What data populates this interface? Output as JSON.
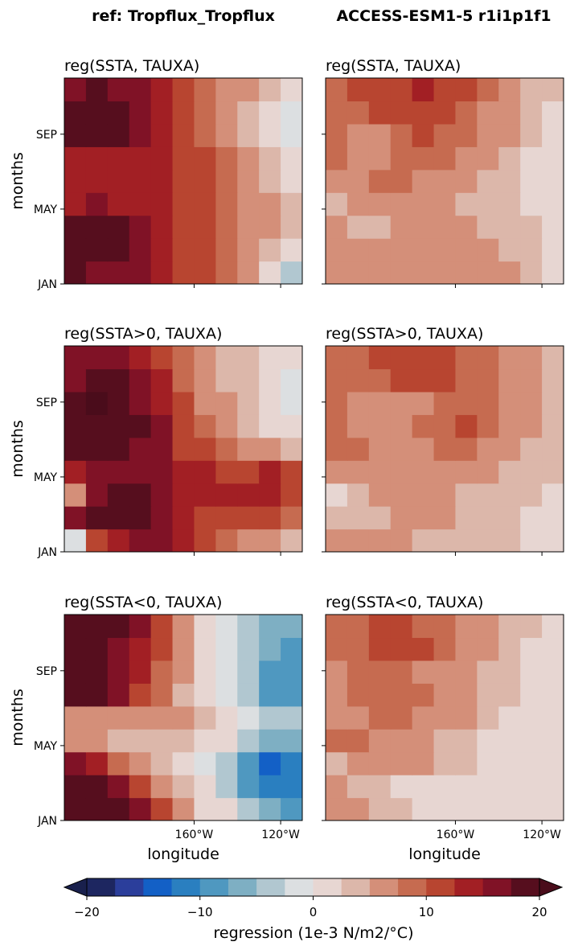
{
  "figure": {
    "column_titles": [
      "ref: Tropflux_Tropflux",
      "ACCESS-ESM1-5 r1i1p1f1"
    ],
    "colors": [
      "#1d2660",
      "#2b3e9b",
      "#1360c6",
      "#2a7fc0",
      "#4f98c0",
      "#7eafc3",
      "#b1c7d0",
      "#dcdfe1",
      "#e7d6d2",
      "#dcb7aa",
      "#d48f79",
      "#c66b50",
      "#b84530",
      "#a21f24",
      "#801226",
      "#560e1e"
    ],
    "under_color": "#19204d",
    "over_color": "#4a0c1b"
  },
  "chart_data": [
    {
      "type": "heatmap",
      "title": "reg(SSTA, TAUXA)",
      "ylabel": "months",
      "xlabel": "",
      "yticks": [
        "JAN",
        "MAY",
        "SEP"
      ],
      "xticks": [],
      "show_ytick_labels": true,
      "xlim_lon": [
        140,
        250
      ],
      "xtick_lon": [
        200,
        240
      ],
      "field": [
        [
          18,
          17,
          17,
          15,
          14,
          12,
          11,
          9,
          6,
          1,
          -3
        ],
        [
          19,
          20,
          19,
          15,
          14,
          12,
          11,
          9,
          7,
          4,
          2
        ],
        [
          18,
          19,
          18,
          15,
          14,
          12,
          11,
          9,
          7,
          5,
          3
        ],
        [
          14,
          15,
          14,
          14,
          13,
          12,
          10,
          9,
          7,
          5,
          3
        ],
        [
          13,
          13,
          13,
          13,
          13,
          12,
          10,
          9,
          6,
          4,
          2
        ],
        [
          14,
          14,
          14,
          13,
          13,
          11,
          10,
          9,
          6,
          3,
          1
        ],
        [
          18,
          20,
          19,
          16,
          14,
          11,
          9,
          7,
          4,
          1,
          -1
        ],
        [
          18,
          20,
          19,
          16,
          14,
          11,
          9,
          7,
          4,
          1,
          -2
        ],
        [
          17,
          18,
          17,
          15,
          14,
          11,
          9,
          7,
          5,
          3,
          0
        ]
      ]
    },
    {
      "type": "heatmap",
      "title": "reg(SSTA, TAUXA)",
      "ylabel": "",
      "xlabel": "",
      "yticks": [
        "JAN",
        "MAY",
        "SEP"
      ],
      "xticks": [],
      "show_ytick_labels": false,
      "xlim_lon": [
        140,
        250
      ],
      "xtick_lon": [
        200,
        240
      ],
      "field": [
        [
          6,
          6,
          7,
          7,
          7,
          6,
          7,
          6,
          5,
          3,
          2
        ],
        [
          7,
          6,
          5,
          6,
          7,
          7,
          6,
          5,
          4,
          3,
          2
        ],
        [
          5,
          4,
          4,
          5,
          6,
          6,
          5,
          4,
          3,
          3,
          2
        ],
        [
          4,
          5,
          6,
          7,
          6,
          5,
          4,
          3,
          3,
          2,
          1
        ],
        [
          6,
          7,
          8,
          8,
          7,
          6,
          5,
          4,
          3,
          2,
          1
        ],
        [
          8,
          7,
          7,
          8,
          9,
          8,
          7,
          6,
          4,
          2,
          1
        ],
        [
          8,
          6,
          7,
          9,
          10,
          9,
          8,
          7,
          5,
          3,
          2
        ],
        [
          9,
          9,
          10,
          11,
          11,
          10,
          9,
          7,
          5,
          3,
          2
        ],
        [
          9,
          10,
          11,
          12,
          13,
          12,
          10,
          8,
          6,
          4,
          3
        ]
      ]
    },
    {
      "type": "heatmap",
      "title": "reg(SSTA>0, TAUXA)",
      "ylabel": "months",
      "xlabel": "",
      "yticks": [
        "JAN",
        "MAY",
        "SEP"
      ],
      "xticks": [],
      "show_ytick_labels": true,
      "xlim_lon": [
        140,
        250
      ],
      "xtick_lon": [
        200,
        240
      ],
      "field": [
        [
          -2,
          10,
          14,
          15,
          15,
          13,
          11,
          9,
          7,
          5,
          4
        ],
        [
          15,
          18,
          19,
          18,
          16,
          14,
          12,
          12,
          11,
          10,
          8
        ],
        [
          5,
          16,
          20,
          19,
          16,
          14,
          13,
          13,
          13,
          14,
          12
        ],
        [
          13,
          16,
          17,
          16,
          15,
          14,
          13,
          12,
          12,
          13,
          12
        ],
        [
          18,
          19,
          18,
          17,
          15,
          12,
          10,
          8,
          6,
          5,
          3
        ],
        [
          19,
          20,
          20,
          18,
          15,
          11,
          8,
          6,
          4,
          2,
          0
        ],
        [
          18,
          21,
          20,
          17,
          14,
          10,
          7,
          5,
          4,
          2,
          -2
        ],
        [
          17,
          20,
          19,
          16,
          13,
          9,
          6,
          4,
          3,
          1,
          -1
        ],
        [
          15,
          17,
          16,
          14,
          12,
          9,
          6,
          4,
          3,
          1,
          0
        ]
      ]
    },
    {
      "type": "heatmap",
      "title": "reg(SSTA>0, TAUXA)",
      "ylabel": "",
      "xlabel": "",
      "yticks": [
        "JAN",
        "MAY",
        "SEP"
      ],
      "xticks": [],
      "show_ytick_labels": false,
      "xlim_lon": [
        140,
        250
      ],
      "xtick_lon": [
        200,
        240
      ],
      "field": [
        [
          7,
          6,
          5,
          5,
          4,
          4,
          4,
          3,
          3,
          2,
          2
        ],
        [
          4,
          3,
          4,
          5,
          5,
          5,
          4,
          3,
          3,
          2,
          2
        ],
        [
          2,
          3,
          5,
          6,
          6,
          5,
          4,
          4,
          3,
          3,
          2
        ],
        [
          5,
          6,
          7,
          7,
          7,
          7,
          6,
          5,
          4,
          4,
          3
        ],
        [
          8,
          8,
          7,
          6,
          7,
          8,
          8,
          7,
          5,
          4,
          3
        ],
        [
          8,
          7,
          6,
          6,
          8,
          9,
          11,
          9,
          7,
          5,
          4
        ],
        [
          8,
          7,
          6,
          6,
          7,
          8,
          9,
          8,
          6,
          5,
          4
        ],
        [
          9,
          9,
          9,
          10,
          11,
          10,
          9,
          8,
          6,
          5,
          4
        ],
        [
          8,
          9,
          10,
          11,
          12,
          11,
          9,
          8,
          6,
          5,
          4
        ]
      ]
    },
    {
      "type": "heatmap",
      "title": "reg(SSTA<0, TAUXA)",
      "ylabel": "months",
      "xlabel": "longitude",
      "yticks": [
        "JAN",
        "MAY",
        "SEP"
      ],
      "xticks": [
        "160$^\\circ$W",
        "120$^\\circ$W"
      ],
      "show_ytick_labels": true,
      "xlim_lon": [
        140,
        250
      ],
      "xtick_lon": [
        200,
        240
      ],
      "field": [
        [
          20,
          20,
          19,
          16,
          11,
          6,
          2,
          0,
          -4,
          -7,
          -8
        ],
        [
          20,
          19,
          16,
          12,
          7,
          3,
          0,
          -3,
          -8,
          -11,
          -12
        ],
        [
          17,
          13,
          9,
          5,
          3,
          1,
          -1,
          -4,
          -9,
          -13,
          -12
        ],
        [
          7,
          5,
          4,
          3,
          3,
          3,
          2,
          0,
          -3,
          -6,
          -6
        ],
        [
          6,
          6,
          6,
          7,
          7,
          6,
          4,
          2,
          -1,
          -4,
          -5
        ],
        [
          18,
          18,
          16,
          12,
          8,
          4,
          1,
          -2,
          -5,
          -8,
          -8
        ],
        [
          20,
          20,
          17,
          13,
          9,
          5,
          2,
          -1,
          -5,
          -8,
          -9
        ],
        [
          19,
          19,
          17,
          14,
          10,
          6,
          2,
          -1,
          -5,
          -7,
          -8
        ],
        [
          20,
          20,
          19,
          15,
          11,
          6,
          2,
          -1,
          -4,
          -6,
          -7
        ]
      ]
    },
    {
      "type": "heatmap",
      "title": "reg(SSTA<0, TAUXA)",
      "ylabel": "",
      "xlabel": "longitude",
      "yticks": [
        "JAN",
        "MAY",
        "SEP"
      ],
      "xticks": [
        "160$^\\circ$W",
        "120$^\\circ$W"
      ],
      "show_ytick_labels": false,
      "xlim_lon": [
        140,
        250
      ],
      "xtick_lon": [
        200,
        240
      ],
      "field": [
        [
          6,
          5,
          4,
          3,
          2,
          1,
          1,
          0,
          0,
          0,
          0
        ],
        [
          5,
          4,
          3,
          2,
          2,
          2,
          1,
          1,
          0,
          0,
          0
        ],
        [
          4,
          5,
          6,
          6,
          5,
          4,
          3,
          2,
          1,
          0,
          0
        ],
        [
          8,
          8,
          7,
          6,
          5,
          4,
          3,
          2,
          1,
          1,
          0
        ],
        [
          6,
          7,
          8,
          8,
          7,
          6,
          5,
          4,
          2,
          1,
          0
        ],
        [
          7,
          8,
          9,
          9,
          8,
          7,
          6,
          4,
          3,
          1,
          0
        ],
        [
          7,
          8,
          8,
          8,
          7,
          6,
          5,
          4,
          3,
          2,
          0
        ],
        [
          8,
          9,
          11,
          12,
          11,
          9,
          7,
          5,
          4,
          2,
          1
        ],
        [
          8,
          9,
          10,
          10,
          9,
          8,
          7,
          5,
          4,
          3,
          2
        ]
      ]
    }
  ],
  "colorbar": {
    "label": "regression (1e-3 N/m2/$^\\circ$C)",
    "ticks": [
      -20,
      -10,
      0,
      10,
      20
    ],
    "levels": [
      -20,
      -17.5,
      -15,
      -12.5,
      -10,
      -7.5,
      -5,
      -2.5,
      0,
      2.5,
      5,
      7.5,
      10,
      12.5,
      15,
      17.5,
      20
    ]
  }
}
